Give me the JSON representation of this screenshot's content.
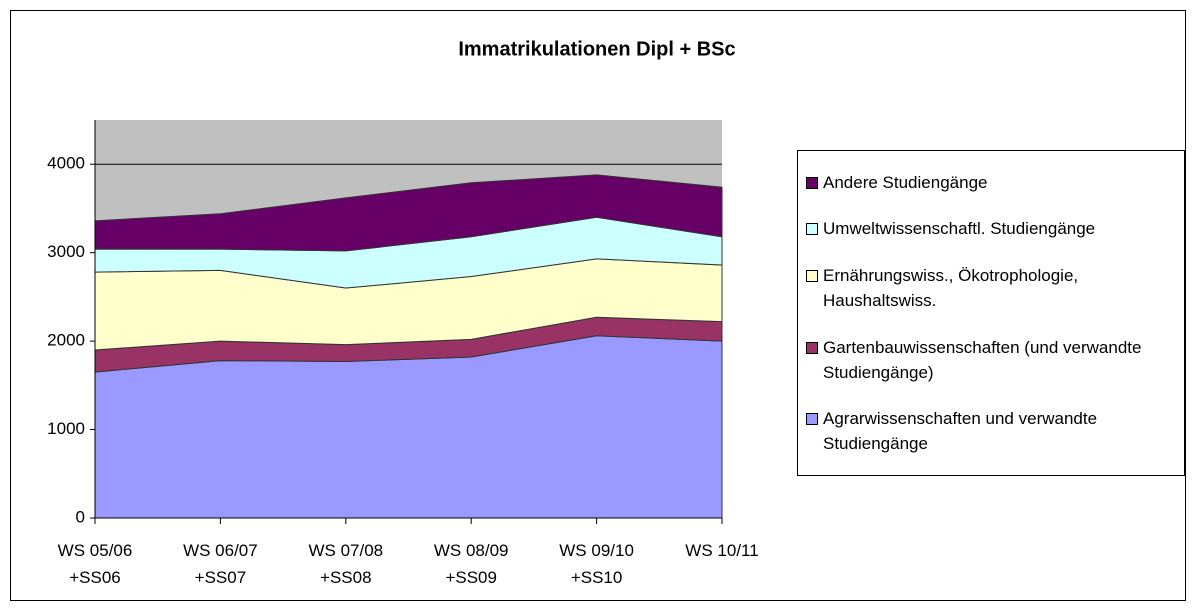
{
  "chart_data": {
    "type": "stacked_area",
    "title": "Immatrikulationen Dipl + BSc",
    "categories": [
      "WS 05/06 +SS06",
      "WS 06/07 +SS07",
      "WS 07/08 +SS08",
      "WS 08/09 +SS09",
      "WS 09/10 +SS10",
      "WS 10/11"
    ],
    "series": [
      {
        "name": "Agrarwissenschaften und verwandte Studiengänge",
        "color": "#9999ff",
        "values": [
          1650,
          1780,
          1770,
          1820,
          2060,
          2000
        ]
      },
      {
        "name": "Gartenbauwissenschaften (und verwandte Studiengänge)",
        "color": "#993366",
        "values": [
          250,
          220,
          190,
          200,
          210,
          220
        ]
      },
      {
        "name": "Ernährungswiss., Ökotrophologie, Haushaltswiss.",
        "color": "#ffffcc",
        "values": [
          880,
          800,
          640,
          710,
          660,
          640
        ]
      },
      {
        "name": "Umweltwissenschaftl. Studiengänge",
        "color": "#ccffff",
        "values": [
          260,
          240,
          420,
          450,
          470,
          320
        ]
      },
      {
        "name": "Andere Studiengänge",
        "color": "#660066",
        "values": [
          320,
          400,
          600,
          610,
          480,
          560
        ]
      }
    ],
    "ylim": [
      0,
      4500
    ],
    "yticks": [
      0,
      1000,
      2000,
      3000,
      4000
    ],
    "grid": true,
    "legend": "right",
    "background": "#c0c0c0"
  }
}
